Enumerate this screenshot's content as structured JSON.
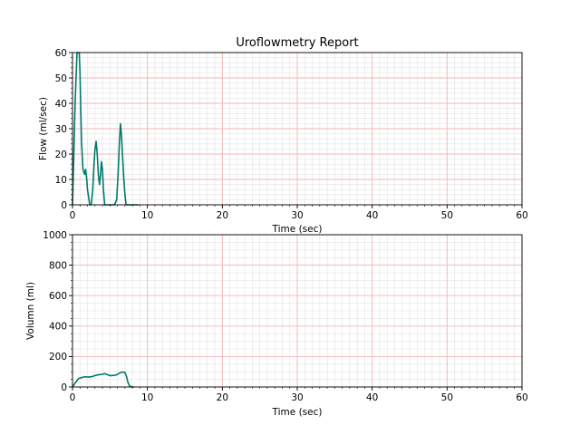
{
  "chart_data": [
    {
      "type": "line",
      "title": "Uroflowmetry Report",
      "xlabel": "Time (sec)",
      "ylabel": "Flow (ml/sec)",
      "xlim": [
        0,
        60
      ],
      "ylim": [
        0,
        60
      ],
      "x_ticks": [
        "0",
        "10",
        "20",
        "30",
        "40",
        "50",
        "60"
      ],
      "y_ticks": [
        "0",
        "10",
        "20",
        "30",
        "40",
        "50",
        "60"
      ],
      "grid": true,
      "minor_grid": true,
      "line_color": "#007a6e",
      "major_grid_color": "#f2b6b6",
      "minor_grid_color": "#e3e3e3",
      "series": [
        {
          "x": [
            0,
            0.35,
            0.6,
            0.75,
            0.9,
            1.0,
            1.05,
            1.2,
            1.4,
            1.6,
            1.75,
            1.9,
            2.0,
            2.1,
            2.3,
            2.5,
            2.7,
            2.85,
            3.0,
            3.15,
            3.3,
            3.45,
            3.6,
            3.75,
            3.85,
            4.0,
            4.15,
            4.3,
            4.45,
            4.6,
            4.75,
            5.2,
            5.6,
            5.9,
            6.1,
            6.25,
            6.4,
            6.55,
            6.7,
            6.85,
            7.0,
            7.15,
            7.3,
            8.0,
            8.8
          ],
          "y": [
            0,
            40,
            60,
            60,
            60,
            52,
            45,
            25,
            14,
            12,
            14,
            10,
            6,
            4,
            0,
            0,
            6,
            15,
            22,
            25,
            20,
            12,
            8,
            12,
            17,
            14,
            5,
            0,
            0,
            0,
            0,
            0,
            0,
            2,
            13,
            24,
            32,
            27,
            18,
            10,
            4,
            0,
            0,
            0,
            0
          ]
        }
      ]
    },
    {
      "type": "line",
      "xlabel": "Time (sec)",
      "ylabel": "Volumn (ml)",
      "xlim": [
        0,
        60
      ],
      "ylim": [
        0,
        1000
      ],
      "x_ticks": [
        "0",
        "10",
        "20",
        "30",
        "40",
        "50",
        "60"
      ],
      "y_ticks": [
        "0",
        "200",
        "400",
        "600",
        "800",
        "1000"
      ],
      "grid": true,
      "minor_grid": true,
      "line_color": "#007a6e",
      "major_grid_color": "#f2b6b6",
      "minor_grid_color": "#e3e3e3",
      "series": [
        {
          "x": [
            0,
            0.4,
            0.8,
            1.2,
            1.7,
            2.2,
            2.6,
            3.0,
            3.4,
            3.9,
            4.3,
            4.7,
            5.1,
            5.5,
            5.9,
            6.3,
            6.7,
            7.0,
            7.2,
            7.4,
            7.6,
            7.8,
            8.0,
            8.2
          ],
          "y": [
            0,
            30,
            55,
            62,
            67,
            65,
            68,
            75,
            80,
            82,
            88,
            80,
            74,
            76,
            80,
            92,
            98,
            95,
            70,
            30,
            8,
            2,
            0,
            0
          ]
        }
      ]
    }
  ]
}
